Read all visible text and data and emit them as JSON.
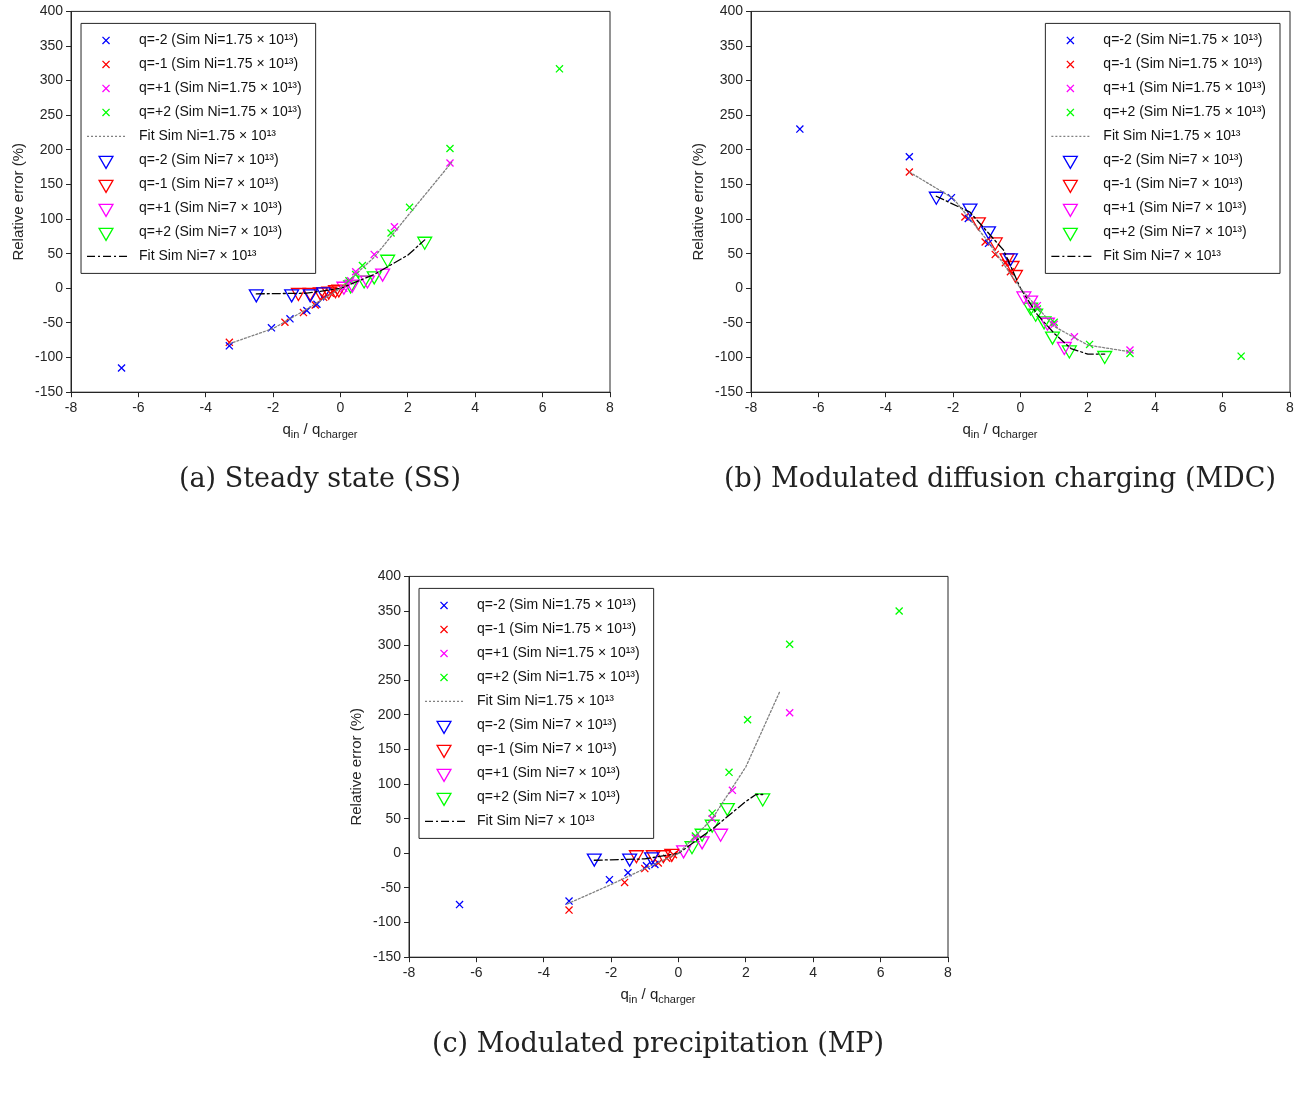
{
  "chart_data": [
    {
      "type": "scatter",
      "title": "(a) Steady state (SS)",
      "xlabel": "q$_{in}$ / q$_{charger}$",
      "ylabel": "Relative error (%)",
      "xlim": [
        -8,
        8
      ],
      "xticks": [
        -8,
        -6,
        -4,
        -2,
        0,
        2,
        4,
        6,
        8
      ],
      "ylim": [
        -150,
        400
      ],
      "yticks": [
        -150,
        -100,
        -50,
        0,
        50,
        100,
        150,
        200,
        250,
        300,
        350,
        400
      ],
      "grid": false,
      "legend": "top left",
      "series": [
        {
          "name": "q=-2 (Sim Ni=1.75 × 10¹³)",
          "color": "#0000ff",
          "marker": "cross",
          "x": [
            -6.5,
            -3.3,
            -2.05,
            -1.5,
            -1.0,
            -0.7
          ],
          "values": [
            -115,
            -83,
            -57,
            -44,
            -32,
            -23
          ]
        },
        {
          "name": "q=-1 (Sim Ni=1.75 × 10¹³)",
          "color": "#ff0000",
          "marker": "cross",
          "x": [
            -3.3,
            -1.65,
            -1.1,
            -0.75,
            -0.5,
            -0.3,
            -0.2
          ],
          "values": [
            -78,
            -49,
            -35,
            -24,
            -13,
            -7,
            -3
          ]
        },
        {
          "name": "q=+1 (Sim Ni=1.75 × 10¹³)",
          "color": "#ff00ff",
          "marker": "cross",
          "x": [
            0.1,
            0.3,
            0.45,
            1.0,
            1.6,
            3.25
          ],
          "values": [
            0,
            11,
            24,
            49,
            89,
            181
          ]
        },
        {
          "name": "q=+2 (Sim Ni=1.75 × 10¹³)",
          "color": "#00ff00",
          "marker": "cross",
          "x": [
            0.25,
            0.45,
            0.65,
            1.5,
            2.05,
            3.25,
            6.5
          ],
          "values": [
            11,
            20,
            33,
            80,
            117,
            202,
            317
          ]
        },
        {
          "name": "Fit Sim Ni=1.75 × 10¹³",
          "type": "line",
          "color": "#808080",
          "marker": "none",
          "line_style": "dotted",
          "x": [
            -3.3,
            -2,
            -1,
            0,
            1,
            2,
            3.3
          ],
          "values": [
            -80,
            -58,
            -30,
            0,
            45,
            105,
            182
          ]
        },
        {
          "name": "q=-2 (Sim Ni=7 × 10¹³)",
          "color": "#0000ff",
          "marker": "triangle",
          "x": [
            -2.5,
            -1.45,
            -0.9,
            -0.5
          ],
          "values": [
            -8,
            -8,
            -8,
            -5
          ]
        },
        {
          "name": "q=-1 (Sim Ni=7 × 10¹³)",
          "color": "#ff0000",
          "marker": "triangle",
          "x": [
            -1.25,
            -0.9,
            -0.6,
            -0.35,
            -0.15,
            -0.05
          ],
          "values": [
            -6,
            -6,
            -5,
            -4,
            -2,
            -1
          ]
        },
        {
          "name": "q=+1 (Sim Ni=7 × 10¹³)",
          "color": "#ff00ff",
          "marker": "triangle",
          "x": [
            0.1,
            0.35,
            0.8,
            1.25
          ],
          "values": [
            3,
            6,
            12,
            22
          ]
        },
        {
          "name": "q=+2 (Sim Ni=7 × 10¹³)",
          "color": "#00ff00",
          "marker": "triangle",
          "x": [
            0.3,
            0.7,
            1.0,
            1.4,
            2.5
          ],
          "values": [
            5,
            12,
            18,
            42,
            68
          ]
        },
        {
          "name": "Fit Sim Ni=7 × 10¹³",
          "type": "line",
          "color": "#000000",
          "marker": "none",
          "line_style": "dashed",
          "x": [
            -2.5,
            -1,
            0,
            1,
            2,
            2.5
          ],
          "values": [
            -8,
            -7,
            0,
            20,
            48,
            70
          ]
        }
      ]
    },
    {
      "type": "scatter",
      "title": "(b) Modulated diffusion charging (MDC)",
      "xlabel": "q$_{in}$ / q$_{charger}$",
      "ylabel": "Relative error (%)",
      "xlim": [
        -8,
        8
      ],
      "xticks": [
        -8,
        -6,
        -4,
        -2,
        0,
        2,
        4,
        6,
        8
      ],
      "ylim": [
        -150,
        400
      ],
      "yticks": [
        -150,
        -100,
        -50,
        0,
        50,
        100,
        150,
        200,
        250,
        300,
        350,
        400
      ],
      "grid": false,
      "legend": "top right",
      "series": [
        {
          "name": "q=-2 (Sim Ni=1.75 × 10¹³)",
          "color": "#0000ff",
          "marker": "cross",
          "x": [
            -6.55,
            -3.3,
            -2.05,
            -1.55,
            -0.95
          ],
          "values": [
            230,
            190,
            131,
            101,
            65
          ]
        },
        {
          "name": "q=-1 (Sim Ni=1.75 × 10¹³)",
          "color": "#ff0000",
          "marker": "cross",
          "x": [
            -3.3,
            -1.65,
            -1.05,
            -0.75,
            -0.45,
            -0.3
          ],
          "values": [
            168,
            103,
            67,
            49,
            37,
            24
          ]
        },
        {
          "name": "q=+1 (Sim Ni=1.75 × 10¹³)",
          "color": "#ff00ff",
          "marker": "cross",
          "x": [
            0.5,
            1.0,
            1.6,
            3.25
          ],
          "values": [
            -25,
            -52,
            -70,
            -89
          ]
        },
        {
          "name": "q=+2 (Sim Ni=1.75 × 10¹³)",
          "color": "#00ff00",
          "marker": "cross",
          "x": [
            0.5,
            1.0,
            2.05,
            3.25,
            6.55
          ],
          "values": [
            -30,
            -49,
            -81,
            -94,
            -98
          ]
        },
        {
          "name": "Fit Sim Ni=1.75 × 10¹³",
          "type": "line",
          "color": "#808080",
          "marker": "none",
          "line_style": "dotted",
          "x": [
            -3.3,
            -2,
            -1,
            0,
            1,
            2,
            3.3
          ],
          "values": [
            168,
            130,
            70,
            0,
            -55,
            -82,
            -92
          ]
        },
        {
          "name": "q=-2 (Sim Ni=7 × 10¹³)",
          "color": "#0000ff",
          "marker": "triangle",
          "x": [
            -2.5,
            -1.5,
            -0.95,
            -0.3
          ],
          "values": [
            133,
            116,
            83,
            44
          ]
        },
        {
          "name": "q=-1 (Sim Ni=7 × 10¹³)",
          "color": "#ff0000",
          "marker": "triangle",
          "x": [
            -1.25,
            -0.75,
            -0.4,
            -0.25,
            -0.15
          ],
          "values": [
            96,
            67,
            44,
            33,
            20
          ]
        },
        {
          "name": "q=+1 (Sim Ni=7 × 10¹³)",
          "color": "#ff00ff",
          "marker": "triangle",
          "x": [
            0.1,
            0.3,
            0.8,
            1.3
          ],
          "values": [
            -11,
            -17,
            -49,
            -84
          ]
        },
        {
          "name": "q=+2 (Sim Ni=7 × 10¹³)",
          "color": "#00ff00",
          "marker": "triangle",
          "x": [
            0.3,
            0.45,
            0.7,
            0.95,
            1.45,
            2.5
          ],
          "values": [
            -27,
            -36,
            -47,
            -69,
            -89,
            -97
          ]
        },
        {
          "name": "Fit Sim Ni=7 × 10¹³",
          "type": "line",
          "color": "#000000",
          "marker": "none",
          "line_style": "dashed",
          "x": [
            -2.5,
            -1.5,
            -0.5,
            0,
            0.5,
            1,
            1.5,
            2,
            2.5
          ],
          "values": [
            133,
            110,
            55,
            0,
            -38,
            -65,
            -87,
            -95,
            -95
          ]
        }
      ]
    },
    {
      "type": "scatter",
      "title": "(c) Modulated precipitation (MP)",
      "xlabel": "q$_{in}$ / q$_{charger}$",
      "ylabel": "Relative error (%)",
      "xlim": [
        -8,
        8
      ],
      "xticks": [
        -8,
        -6,
        -4,
        -2,
        0,
        2,
        4,
        6,
        8
      ],
      "ylim": [
        -150,
        400
      ],
      "yticks": [
        -150,
        -100,
        -50,
        0,
        50,
        100,
        150,
        200,
        250,
        300,
        350,
        400
      ],
      "grid": false,
      "legend": "top left",
      "series": [
        {
          "name": "q=-2 (Sim Ni=1.75 × 10¹³)",
          "color": "#0000ff",
          "marker": "cross",
          "x": [
            -6.5,
            -3.25,
            -2.05,
            -1.5,
            -0.95,
            -0.7
          ],
          "values": [
            -74,
            -69,
            -38,
            -28,
            -18,
            -16
          ]
        },
        {
          "name": "q=-1 (Sim Ni=1.75 × 10¹³)",
          "color": "#ff0000",
          "marker": "cross",
          "x": [
            -3.25,
            -1.6,
            -1.0,
            -0.6,
            -0.35,
            -0.15
          ],
          "values": [
            -82,
            -42,
            -22,
            -14,
            -7,
            -2
          ]
        },
        {
          "name": "q=+1 (Sim Ni=1.75 × 10¹³)",
          "color": "#ff00ff",
          "marker": "cross",
          "x": [
            0.5,
            1.0,
            1.6,
            3.3
          ],
          "values": [
            22,
            50,
            91,
            203
          ]
        },
        {
          "name": "q=+2 (Sim Ni=1.75 × 10¹³)",
          "color": "#00ff00",
          "marker": "cross",
          "x": [
            0.5,
            1.0,
            1.5,
            2.05,
            3.3,
            6.55
          ],
          "values": [
            25,
            58,
            117,
            193,
            302,
            350
          ]
        },
        {
          "name": "Fit Sim Ni=1.75 × 10¹³",
          "type": "line",
          "color": "#808080",
          "marker": "none",
          "line_style": "dotted",
          "x": [
            -3.3,
            -2,
            -1,
            0,
            1,
            2,
            3
          ],
          "values": [
            -73,
            -45,
            -22,
            0,
            50,
            125,
            233
          ]
        },
        {
          "name": "q=-2 (Sim Ni=7 × 10¹³)",
          "color": "#0000ff",
          "marker": "triangle",
          "x": [
            -2.5,
            -1.45,
            -0.8
          ],
          "values": [
            -7,
            -7,
            -5
          ]
        },
        {
          "name": "q=-1 (Sim Ni=7 × 10¹³)",
          "color": "#ff0000",
          "marker": "triangle",
          "x": [
            -1.25,
            -0.75,
            -0.45,
            -0.2
          ],
          "values": [
            -2,
            -2,
            -2,
            0
          ]
        },
        {
          "name": "q=+1 (Sim Ni=7 × 10¹³)",
          "color": "#ff00ff",
          "marker": "triangle",
          "x": [
            0.15,
            0.7,
            1.25
          ],
          "values": [
            5,
            18,
            29
          ]
        },
        {
          "name": "q=+2 (Sim Ni=7 × 10¹³)",
          "color": "#00ff00",
          "marker": "triangle",
          "x": [
            0.4,
            0.7,
            1.0,
            1.45,
            2.5
          ],
          "values": [
            11,
            29,
            42,
            66,
            80
          ]
        },
        {
          "name": "Fit Sim Ni=7 × 10¹³",
          "type": "line",
          "color": "#000000",
          "marker": "none",
          "line_style": "dashed",
          "x": [
            -2.5,
            -1,
            0,
            1,
            2,
            2.3,
            2.5
          ],
          "values": [
            -10,
            -8,
            0,
            35,
            75,
            85,
            85
          ]
        }
      ]
    }
  ]
}
